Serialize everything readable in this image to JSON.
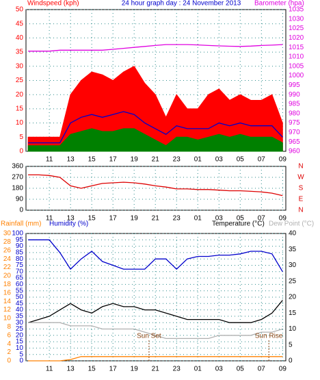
{
  "chart_data": [
    {
      "type": "line",
      "headers": [
        {
          "text": "Windspeed (kph)",
          "color": "#ff0000"
        },
        {
          "text": "24 hour graph day : 24 November 2013",
          "color": "#0000cc"
        },
        {
          "text": "Barometer (hpa)",
          "color": "#e000e0"
        }
      ],
      "x": [
        9,
        10,
        11,
        12,
        13,
        14,
        15,
        16,
        17,
        18,
        19,
        20,
        21,
        22,
        23,
        24,
        25,
        26,
        27,
        28,
        29,
        30,
        31,
        32,
        33
      ],
      "xlim": [
        8.8,
        33.3
      ],
      "xticks": [
        11,
        13,
        15,
        17,
        19,
        21,
        23,
        {
          "value": 25,
          "label": "01"
        },
        {
          "value": 27,
          "label": "03"
        },
        {
          "value": 29,
          "label": "05"
        },
        {
          "value": 31,
          "label": "07"
        },
        {
          "value": 33,
          "label": "09"
        }
      ],
      "ylim": [
        0,
        50
      ],
      "yticks": [
        0,
        5,
        10,
        15,
        20,
        25,
        30,
        35,
        40,
        45,
        50
      ],
      "y2lim": [
        960,
        1035
      ],
      "y2ticks": [
        960,
        965,
        970,
        975,
        980,
        985,
        990,
        995,
        1000,
        1005,
        1010,
        1015,
        1020,
        1025,
        1030,
        1035
      ],
      "grid": true,
      "series": [
        {
          "color": "#ff0000",
          "area": true,
          "values": [
            5,
            5,
            5,
            5,
            20,
            25,
            28,
            27,
            25,
            28,
            30,
            24,
            20,
            12,
            20,
            15,
            15,
            20,
            22,
            18,
            20,
            18,
            18,
            20,
            10
          ]
        },
        {
          "color": "#008000",
          "area": true,
          "values": [
            2,
            2,
            2,
            2,
            6,
            7,
            8,
            7,
            7,
            8,
            8,
            6,
            4,
            2,
            5,
            5,
            4,
            5,
            6,
            5,
            6,
            5,
            5,
            5,
            3
          ]
        },
        {
          "color": "#0000cc",
          "values": [
            3,
            3,
            3,
            3,
            10,
            12,
            13,
            12,
            13,
            14,
            13,
            10,
            8,
            6,
            9,
            8,
            8,
            8,
            10,
            9,
            10,
            9,
            9,
            9,
            5
          ]
        },
        {
          "color": "#e000e0",
          "axis": "y2",
          "values": [
            1013,
            1013,
            1013,
            1013.5,
            1013.5,
            1013.5,
            1013.5,
            1013.5,
            1014,
            1014.5,
            1015,
            1015.5,
            1016,
            1016.5,
            1016.5,
            1016.5,
            1016.3,
            1016,
            1015.8,
            1015.6,
            1015.5,
            1015.7,
            1016,
            1016.2,
            1016.5
          ]
        }
      ]
    },
    {
      "type": "line",
      "compass": [
        "N",
        "W",
        "S",
        "E",
        "N"
      ],
      "x": [
        9,
        10,
        11,
        12,
        13,
        14,
        15,
        16,
        17,
        18,
        19,
        20,
        21,
        22,
        23,
        24,
        25,
        26,
        27,
        28,
        29,
        30,
        31,
        32,
        33
      ],
      "xlim": [
        8.8,
        33.3
      ],
      "xticks": [
        11,
        13,
        15,
        17,
        19,
        21,
        23,
        {
          "value": 25,
          "label": "01"
        },
        {
          "value": 27,
          "label": "03"
        },
        {
          "value": 29,
          "label": "05"
        },
        {
          "value": 31,
          "label": "07"
        },
        {
          "value": 33,
          "label": "09"
        }
      ],
      "ylim": [
        0,
        360
      ],
      "yticks": [
        0,
        90,
        180,
        270,
        360
      ],
      "grid": true,
      "series": [
        {
          "color": "#dd0000",
          "values": [
            290,
            290,
            285,
            270,
            200,
            180,
            200,
            220,
            225,
            230,
            225,
            215,
            200,
            190,
            175,
            175,
            170,
            170,
            165,
            160,
            160,
            155,
            150,
            140,
            120
          ]
        }
      ]
    },
    {
      "type": "line",
      "headers": [
        {
          "text": "Rainfall (mm)",
          "color": "#ff8000"
        },
        {
          "text": "Humidity (%)",
          "color": "#0000cc"
        },
        {
          "text": "Temperature (°C)",
          "color": "#000000"
        },
        {
          "text": "Dew Point (°C)",
          "color": "#b0b0b0"
        }
      ],
      "x": [
        9,
        10,
        11,
        12,
        13,
        14,
        15,
        16,
        17,
        18,
        19,
        20,
        21,
        22,
        23,
        24,
        25,
        26,
        27,
        28,
        29,
        30,
        31,
        32,
        33
      ],
      "xlim": [
        8.8,
        33.3
      ],
      "xticks": [
        11,
        13,
        15,
        17,
        19,
        21,
        23,
        {
          "value": 25,
          "label": "01"
        },
        {
          "value": 27,
          "label": "03"
        },
        {
          "value": 29,
          "label": "05"
        },
        {
          "value": 31,
          "label": "07"
        },
        {
          "value": 33,
          "label": "09"
        }
      ],
      "ylim": [
        0,
        100
      ],
      "yticks": [
        0,
        5,
        10,
        15,
        20,
        25,
        30,
        35,
        40,
        45,
        50,
        55,
        60,
        65,
        70,
        75,
        80,
        85,
        90,
        95,
        100
      ],
      "y2lim": [
        0,
        40
      ],
      "y2ticks": [
        0,
        5,
        10,
        15,
        20,
        25,
        30,
        35,
        40
      ],
      "y3lim": [
        0,
        30
      ],
      "y3ticks": [
        0,
        2,
        4,
        6,
        8,
        10,
        12,
        14,
        16,
        18,
        20,
        22,
        24,
        26,
        28,
        30
      ],
      "grid": true,
      "annotations": [
        {
          "text": "Sun Set",
          "x": 20.4
        },
        {
          "text": "Sun Rise",
          "x": 31.7
        }
      ],
      "series": [
        {
          "color": "#0000cc",
          "values": [
            95,
            95,
            95,
            85,
            72,
            80,
            86,
            78,
            75,
            72,
            72,
            72,
            80,
            80,
            72,
            80,
            82,
            82,
            83,
            83,
            84,
            86,
            86,
            84,
            70
          ]
        },
        {
          "color": "#000000",
          "axis": "y2",
          "values": [
            12,
            13,
            14,
            16,
            18,
            16,
            15,
            17,
            18,
            17,
            17,
            16,
            16,
            15,
            14,
            13,
            13,
            13,
            13,
            12,
            12,
            12,
            13,
            15,
            19
          ]
        },
        {
          "color": "#b0b0b0",
          "axis": "y2",
          "values": [
            12,
            12,
            12,
            12,
            11,
            11,
            11,
            10,
            10,
            10,
            10,
            9,
            8,
            7,
            7,
            7,
            7,
            7,
            8,
            8,
            8,
            8,
            9,
            9,
            10
          ]
        },
        {
          "color": "#ff8000",
          "axis": "y3",
          "values": [
            0,
            0,
            0,
            0,
            0.3,
            1,
            1,
            1,
            1,
            1,
            1,
            1,
            1,
            1,
            1,
            1,
            1,
            1,
            1,
            1,
            1,
            1,
            1,
            1,
            1
          ]
        }
      ]
    }
  ]
}
